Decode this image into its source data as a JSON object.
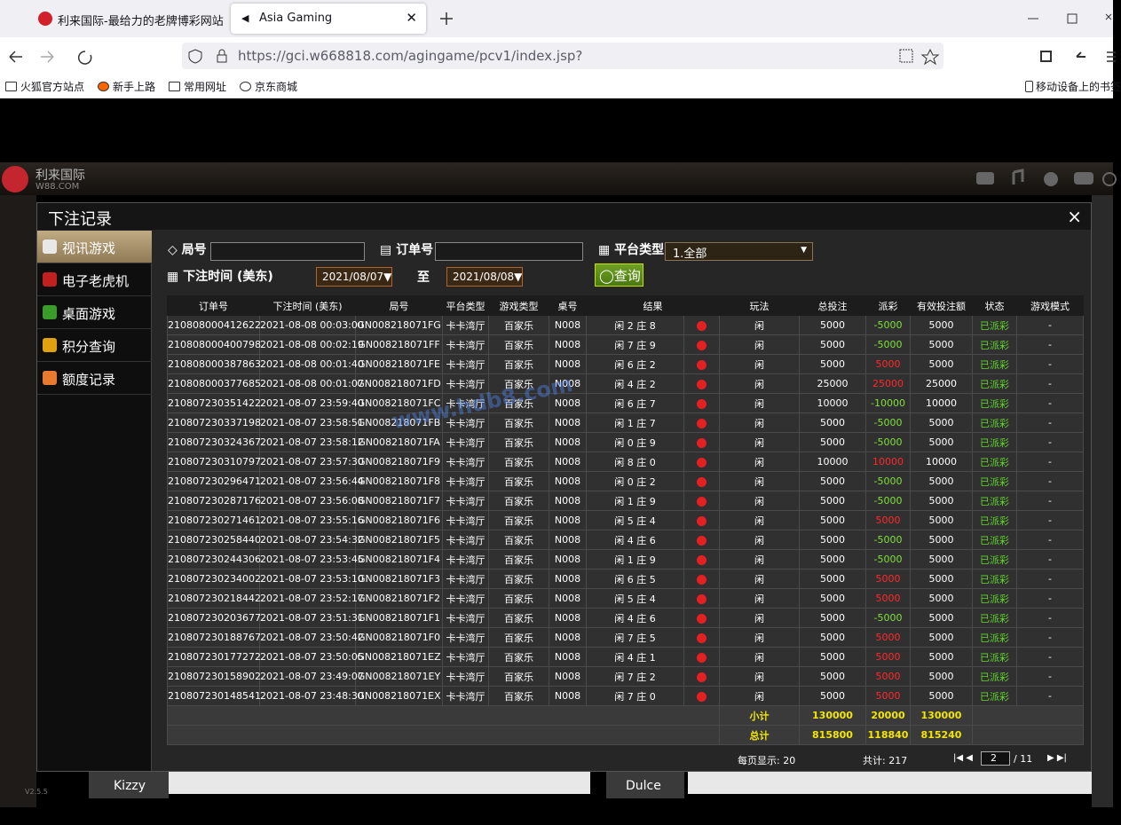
{
  "browser": {
    "tabs": [
      "利来国际-最给力的老牌博彩网站",
      "Asia Gaming"
    ],
    "url": "https://gci.w668818.com/agingame/pcv1/index.jsp?",
    "bookmarks": [
      "火狐官方站点",
      "新手上路",
      "常用网址",
      "京东商城"
    ],
    "mobile_bookmarks": "移动设备上的书签"
  },
  "site": {
    "brand": "利来国际",
    "domain": "W88.COM",
    "version": "V2.5.5",
    "dealers": [
      "Kizzy",
      "Dulce"
    ]
  },
  "watermark": "www.hdb8.com",
  "dialog": {
    "title": "下注记录",
    "close": "×",
    "menu": [
      "视讯游戏",
      "电子老虎机",
      "桌面游戏",
      "积分查询",
      "额度记录"
    ],
    "filters": {
      "round_label": "局号",
      "order_label": "订单号",
      "platform_label": "平台类型",
      "platform_value": "1.全部",
      "time_label": "下注时间 (美东)",
      "date_from": "2021/08/07",
      "to": "至",
      "date_to": "2021/08/08",
      "search": "查询"
    },
    "table": {
      "headers": [
        "订单号",
        "下注时间 (美东)",
        "局号",
        "平台类型",
        "游戏类型",
        "桌号",
        "结果",
        "玩法",
        "总投注",
        "派彩",
        "有效投注额",
        "状态",
        "游戏模式"
      ],
      "rows": [
        [
          "210808000412622",
          "2021-08-08 00:03:00",
          "GN008218071FG",
          "卡卡湾厅",
          "百家乐",
          "N008",
          "闲 2 庄 8",
          "闲",
          5000,
          -5000,
          5000,
          "已派彩",
          "-"
        ],
        [
          "210808000400798",
          "2021-08-08 00:02:19",
          "GN008218071FF",
          "卡卡湾厅",
          "百家乐",
          "N008",
          "闲 7 庄 9",
          "闲",
          5000,
          -5000,
          5000,
          "已派彩",
          "-"
        ],
        [
          "210808000387863",
          "2021-08-08 00:01:40",
          "GN008218071FE",
          "卡卡湾厅",
          "百家乐",
          "N008",
          "闲 6 庄 2",
          "闲",
          5000,
          5000,
          5000,
          "已派彩",
          "-"
        ],
        [
          "210808000377685",
          "2021-08-08 00:01:07",
          "GN008218071FD",
          "卡卡湾厅",
          "百家乐",
          "N008",
          "闲 4 庄 2",
          "闲",
          25000,
          25000,
          25000,
          "已派彩",
          "-"
        ],
        [
          "210807230351422",
          "2021-08-07 23:59:40",
          "GN008218071FC",
          "卡卡湾厅",
          "百家乐",
          "N008",
          "闲 6 庄 7",
          "闲",
          10000,
          -10000,
          10000,
          "已派彩",
          "-"
        ],
        [
          "210807230337198",
          "2021-08-07 23:58:51",
          "GN008218071FB",
          "卡卡湾厅",
          "百家乐",
          "N008",
          "闲 1 庄 7",
          "闲",
          5000,
          -5000,
          5000,
          "已派彩",
          "-"
        ],
        [
          "210807230324367",
          "2021-08-07 23:58:12",
          "GN008218071FA",
          "卡卡湾厅",
          "百家乐",
          "N008",
          "闲 0 庄 9",
          "闲",
          5000,
          -5000,
          5000,
          "已派彩",
          "-"
        ],
        [
          "210807230310797",
          "2021-08-07 23:57:30",
          "GN008218071F9",
          "卡卡湾厅",
          "百家乐",
          "N008",
          "闲 8 庄 0",
          "闲",
          10000,
          10000,
          10000,
          "已派彩",
          "-"
        ],
        [
          "210807230296471",
          "2021-08-07 23:56:44",
          "GN008218071F8",
          "卡卡湾厅",
          "百家乐",
          "N008",
          "闲 0 庄 2",
          "闲",
          5000,
          -5000,
          5000,
          "已派彩",
          "-"
        ],
        [
          "210807230287176",
          "2021-08-07 23:56:08",
          "GN008218071F7",
          "卡卡湾厅",
          "百家乐",
          "N008",
          "闲 1 庄 9",
          "闲",
          5000,
          -5000,
          5000,
          "已派彩",
          "-"
        ],
        [
          "210807230271461",
          "2021-08-07 23:55:16",
          "GN008218071F6",
          "卡卡湾厅",
          "百家乐",
          "N008",
          "闲 5 庄 4",
          "闲",
          5000,
          5000,
          5000,
          "已派彩",
          "-"
        ],
        [
          "210807230258440",
          "2021-08-07 23:54:32",
          "GN008218071F5",
          "卡卡湾厅",
          "百家乐",
          "N008",
          "闲 4 庄 6",
          "闲",
          5000,
          -5000,
          5000,
          "已派彩",
          "-"
        ],
        [
          "210807230244306",
          "2021-08-07 23:53:45",
          "GN008218071F4",
          "卡卡湾厅",
          "百家乐",
          "N008",
          "闲 1 庄 9",
          "闲",
          5000,
          -5000,
          5000,
          "已派彩",
          "-"
        ],
        [
          "210807230234002",
          "2021-08-07 23:53:10",
          "GN008218071F3",
          "卡卡湾厅",
          "百家乐",
          "N008",
          "闲 6 庄 5",
          "闲",
          5000,
          5000,
          5000,
          "已派彩",
          "-"
        ],
        [
          "210807230218442",
          "2021-08-07 23:52:17",
          "GN008218071F2",
          "卡卡湾厅",
          "百家乐",
          "N008",
          "闲 5 庄 4",
          "闲",
          5000,
          5000,
          5000,
          "已派彩",
          "-"
        ],
        [
          "210807230203677",
          "2021-08-07 23:51:31",
          "GN008218071F1",
          "卡卡湾厅",
          "百家乐",
          "N008",
          "闲 4 庄 6",
          "闲",
          5000,
          -5000,
          5000,
          "已派彩",
          "-"
        ],
        [
          "210807230188767",
          "2021-08-07 23:50:42",
          "GN008218071F0",
          "卡卡湾厅",
          "百家乐",
          "N008",
          "闲 7 庄 5",
          "闲",
          5000,
          5000,
          5000,
          "已派彩",
          "-"
        ],
        [
          "210807230177272",
          "2021-08-07 23:50:05",
          "GN008218071EZ",
          "卡卡湾厅",
          "百家乐",
          "N008",
          "闲 4 庄 1",
          "闲",
          5000,
          5000,
          5000,
          "已派彩",
          "-"
        ],
        [
          "210807230158902",
          "2021-08-07 23:49:07",
          "GN008218071EY",
          "卡卡湾厅",
          "百家乐",
          "N008",
          "闲 7 庄 2",
          "闲",
          5000,
          5000,
          5000,
          "已派彩",
          "-"
        ],
        [
          "210807230148541",
          "2021-08-07 23:48:30",
          "GN008218071EX",
          "卡卡湾厅",
          "百家乐",
          "N008",
          "闲 7 庄 0",
          "闲",
          5000,
          5000,
          5000,
          "已派彩",
          "-"
        ]
      ],
      "subtotal": {
        "label": "小计",
        "bet": 130000,
        "payout": 20000,
        "valid": 130000
      },
      "total": {
        "label": "总计",
        "bet": 815800,
        "payout": 118840,
        "valid": 815240
      }
    },
    "pager": {
      "per_page": "每页显示: 20",
      "count": "共计: 217",
      "page": "2",
      "pages": "/ 11"
    }
  }
}
